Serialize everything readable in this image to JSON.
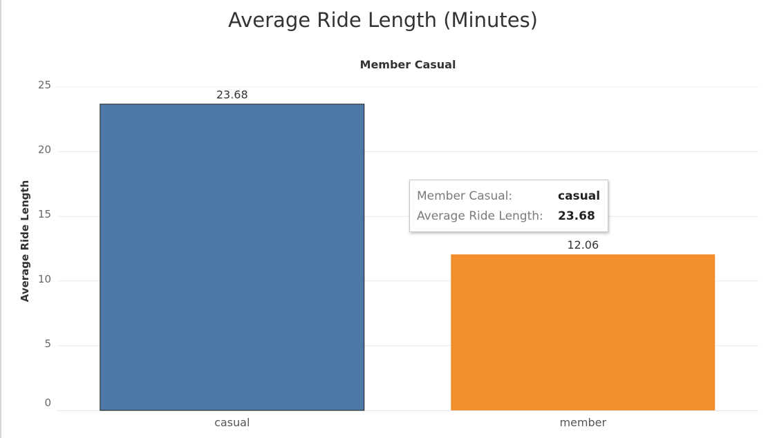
{
  "chart_data": {
    "type": "bar",
    "title": "Average Ride Length (Minutes)",
    "column_header": "Member Casual",
    "xlabel": "",
    "ylabel": "Average Ride Length",
    "categories": [
      "casual",
      "member"
    ],
    "values": [
      23.68,
      12.06
    ],
    "data_labels": [
      "23.68",
      "12.06"
    ],
    "ylim": [
      0,
      25
    ],
    "yticks": [
      0,
      5,
      10,
      15,
      20,
      25
    ],
    "grid": true,
    "colors": [
      "#4e79a7",
      "#f28e2b"
    ]
  },
  "tooltip": {
    "rows": [
      {
        "key": "Member Casual:",
        "value": "casual"
      },
      {
        "key": "Average Ride Length:",
        "value": "23.68"
      }
    ]
  }
}
